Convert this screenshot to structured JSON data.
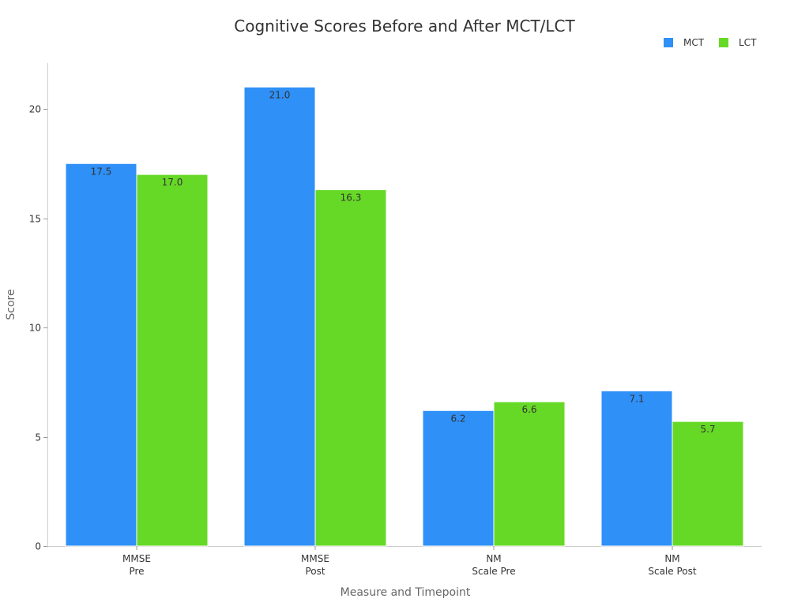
{
  "chart_data": {
    "type": "bar",
    "title": "Cognitive Scores Before and After MCT/LCT",
    "xlabel": "Measure and Timepoint",
    "ylabel": "Score",
    "categories": [
      [
        "MMSE",
        "Pre"
      ],
      [
        "MMSE",
        "Post"
      ],
      [
        "NM",
        "Scale Pre"
      ],
      [
        "NM",
        "Scale Post"
      ]
    ],
    "series": [
      {
        "name": "MCT",
        "color": "#2f90f7",
        "values": [
          17.5,
          21.0,
          6.2,
          7.1
        ]
      },
      {
        "name": "LCT",
        "color": "#66d926",
        "values": [
          17.0,
          16.3,
          6.6,
          5.7
        ]
      }
    ],
    "ylim": [
      0,
      22
    ],
    "yticks": [
      0,
      5,
      10,
      15,
      20
    ],
    "grid": false,
    "legend_position": "top-right",
    "data_labels": true,
    "data_label_format": "0.0"
  }
}
